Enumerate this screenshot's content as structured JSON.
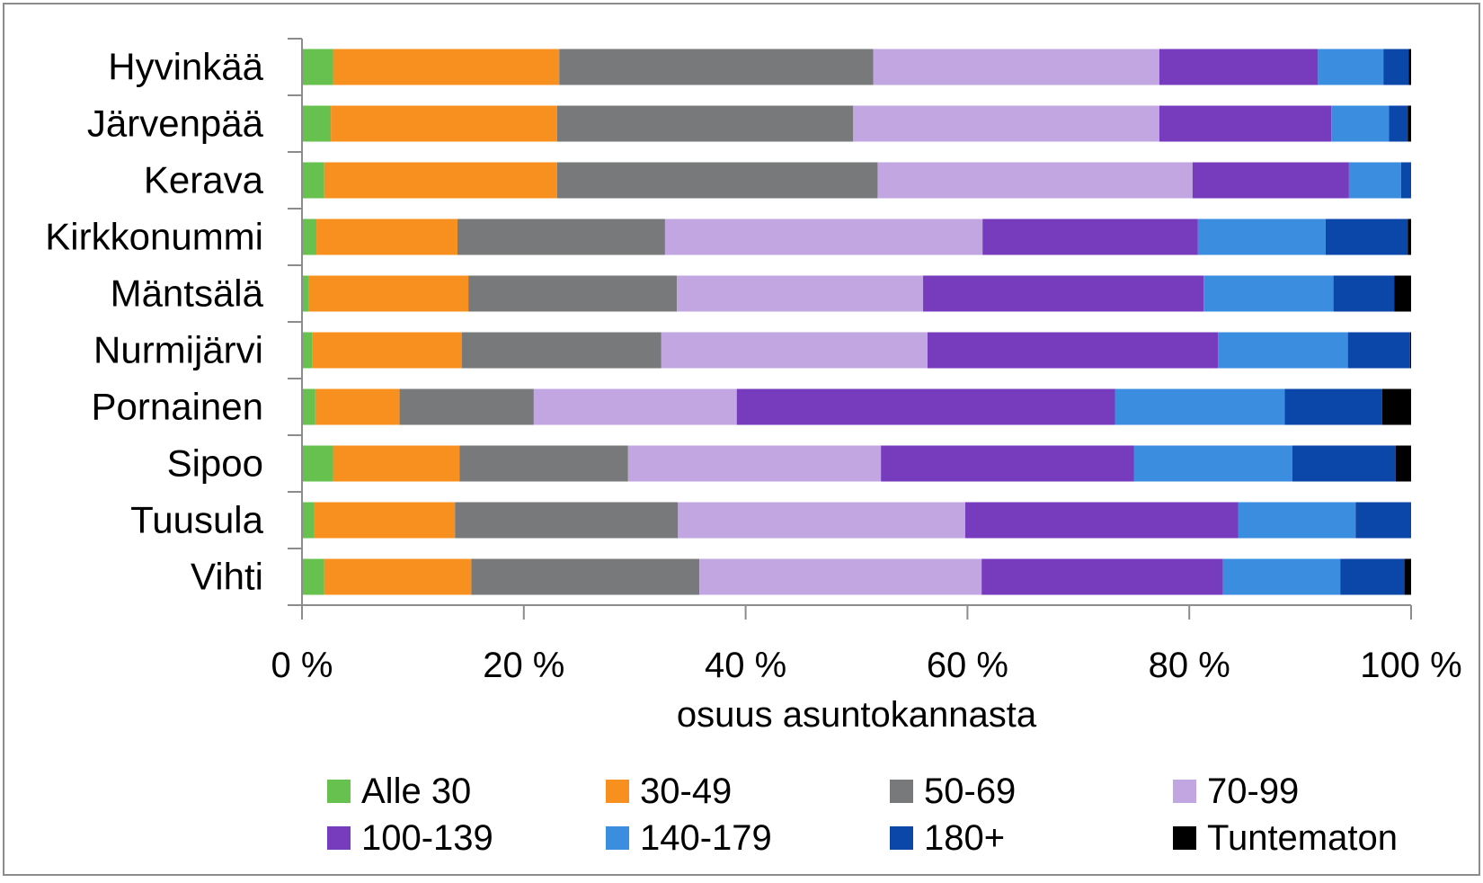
{
  "chart_data": {
    "type": "bar",
    "orientation": "horizontal",
    "stacked": "percent",
    "title": "",
    "xlabel": "osuus asuntokannasta",
    "ylabel": "",
    "xlim": [
      0,
      100
    ],
    "x_ticks": [
      "0 %",
      "20 %",
      "40 %",
      "60 %",
      "80 %",
      "100 %"
    ],
    "grid": false,
    "legend_position": "bottom",
    "categories": [
      "Hyvinkää",
      "Järvenpää",
      "Kerava",
      "Kirkkonummi",
      "Mäntsälä",
      "Nurmijärvi",
      "Pornainen",
      "Sipoo",
      "Tuusula",
      "Vihti"
    ],
    "series": [
      {
        "name": "Alle 30",
        "color": "#66c14f",
        "values": [
          2.8,
          2.6,
          2.0,
          1.3,
          0.6,
          0.9,
          1.2,
          2.8,
          1.1,
          2.0
        ]
      },
      {
        "name": "30-49",
        "color": "#f7901e",
        "values": [
          20.4,
          20.4,
          21.0,
          12.7,
          14.4,
          13.5,
          7.6,
          11.4,
          12.7,
          13.3
        ]
      },
      {
        "name": "50-69",
        "color": "#77797a",
        "values": [
          28.3,
          26.7,
          28.9,
          18.7,
          18.8,
          18.0,
          12.1,
          15.2,
          20.1,
          20.6
        ]
      },
      {
        "name": "70-99",
        "color": "#c1a6e1",
        "values": [
          25.8,
          27.6,
          28.4,
          28.6,
          22.2,
          24.0,
          18.3,
          22.8,
          25.9,
          25.5
        ]
      },
      {
        "name": "100-139",
        "color": "#773bbd",
        "values": [
          14.3,
          15.5,
          14.1,
          19.4,
          25.3,
          26.2,
          34.1,
          22.8,
          24.6,
          21.8
        ]
      },
      {
        "name": "140-179",
        "color": "#3a8ddf",
        "values": [
          5.9,
          5.2,
          4.7,
          11.5,
          11.7,
          11.7,
          15.3,
          14.3,
          10.6,
          10.6
        ]
      },
      {
        "name": "180+",
        "color": "#0a47a9",
        "values": [
          2.3,
          1.7,
          0.9,
          7.4,
          5.5,
          5.6,
          8.8,
          9.3,
          5.0,
          5.8
        ]
      },
      {
        "name": "Tuntematon",
        "color": "#000000",
        "values": [
          0.2,
          0.3,
          0.0,
          0.3,
          1.5,
          0.1,
          2.6,
          1.4,
          0.0,
          0.6
        ]
      }
    ]
  }
}
